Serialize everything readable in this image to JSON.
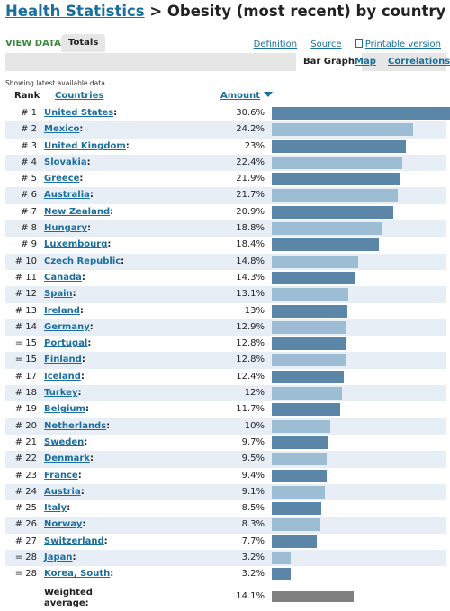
{
  "header": {
    "title_link": "Health Statistics",
    "title_rest": " > Obesity (most recent) by country"
  },
  "viewdata": {
    "label": "VIEW DATA:",
    "active_tab": "Totals",
    "links": {
      "definition": "Definition",
      "source": "Source",
      "printable": "Printable version"
    }
  },
  "tabs": {
    "bar_graph": "Bar Graph",
    "map": "Map",
    "correlations": "Correlations"
  },
  "note": "Showing latest available data.",
  "columns": {
    "rank": "Rank",
    "countries": "Countries",
    "amount": "Amount"
  },
  "colors": {
    "bar_dark": "#5b86a8",
    "bar_light": "#9dbdd4",
    "bar_avg": "#808080",
    "link": "#1a6f9e"
  },
  "chart_data": {
    "type": "bar",
    "unit": "%",
    "max": 30.6,
    "rows": [
      {
        "rank": "# 1",
        "country": "United States",
        "value": 30.6,
        "display": "30.6%"
      },
      {
        "rank": "# 2",
        "country": "Mexico",
        "value": 24.2,
        "display": "24.2%"
      },
      {
        "rank": "# 3",
        "country": "United Kingdom",
        "value": 23,
        "display": "23%"
      },
      {
        "rank": "# 4",
        "country": "Slovakia",
        "value": 22.4,
        "display": "22.4%"
      },
      {
        "rank": "# 5",
        "country": "Greece",
        "value": 21.9,
        "display": "21.9%"
      },
      {
        "rank": "# 6",
        "country": "Australia",
        "value": 21.7,
        "display": "21.7%"
      },
      {
        "rank": "# 7",
        "country": "New Zealand",
        "value": 20.9,
        "display": "20.9%"
      },
      {
        "rank": "# 8",
        "country": "Hungary",
        "value": 18.8,
        "display": "18.8%"
      },
      {
        "rank": "# 9",
        "country": "Luxembourg",
        "value": 18.4,
        "display": "18.4%"
      },
      {
        "rank": "# 10",
        "country": "Czech Republic",
        "value": 14.8,
        "display": "14.8%"
      },
      {
        "rank": "# 11",
        "country": "Canada",
        "value": 14.3,
        "display": "14.3%"
      },
      {
        "rank": "# 12",
        "country": "Spain",
        "value": 13.1,
        "display": "13.1%"
      },
      {
        "rank": "# 13",
        "country": "Ireland",
        "value": 13,
        "display": "13%"
      },
      {
        "rank": "# 14",
        "country": "Germany",
        "value": 12.9,
        "display": "12.9%"
      },
      {
        "rank": "= 15",
        "country": "Portugal",
        "value": 12.8,
        "display": "12.8%"
      },
      {
        "rank": "= 15",
        "country": "Finland",
        "value": 12.8,
        "display": "12.8%"
      },
      {
        "rank": "# 17",
        "country": "Iceland",
        "value": 12.4,
        "display": "12.4%"
      },
      {
        "rank": "# 18",
        "country": "Turkey",
        "value": 12,
        "display": "12%"
      },
      {
        "rank": "# 19",
        "country": "Belgium",
        "value": 11.7,
        "display": "11.7%"
      },
      {
        "rank": "# 20",
        "country": "Netherlands",
        "value": 10,
        "display": "10%"
      },
      {
        "rank": "# 21",
        "country": "Sweden",
        "value": 9.7,
        "display": "9.7%"
      },
      {
        "rank": "# 22",
        "country": "Denmark",
        "value": 9.5,
        "display": "9.5%"
      },
      {
        "rank": "# 23",
        "country": "France",
        "value": 9.4,
        "display": "9.4%"
      },
      {
        "rank": "# 24",
        "country": "Austria",
        "value": 9.1,
        "display": "9.1%"
      },
      {
        "rank": "# 25",
        "country": "Italy",
        "value": 8.5,
        "display": "8.5%"
      },
      {
        "rank": "# 26",
        "country": "Norway",
        "value": 8.3,
        "display": "8.3%"
      },
      {
        "rank": "# 27",
        "country": "Switzerland",
        "value": 7.7,
        "display": "7.7%"
      },
      {
        "rank": "= 28",
        "country": "Japan",
        "value": 3.2,
        "display": "3.2%"
      },
      {
        "rank": "= 28",
        "country": "Korea, South",
        "value": 3.2,
        "display": "3.2%"
      }
    ],
    "weighted_average": {
      "label_line1": "Weighted",
      "label_line2": "average:",
      "value": 14.1,
      "display": "14.1%"
    }
  }
}
